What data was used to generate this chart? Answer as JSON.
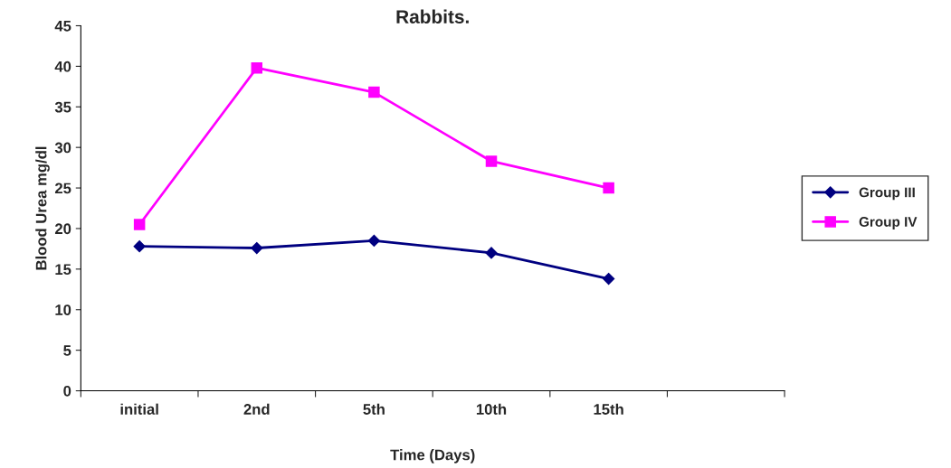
{
  "chart_data": {
    "type": "line",
    "title": "Rabbits.",
    "xlabel": "Time (Days)",
    "ylabel": "Blood Urea mg/dl",
    "categories": [
      "initial",
      "2nd",
      "5th",
      "10th",
      "15th",
      null
    ],
    "series": [
      {
        "name": "Group III",
        "color": "#000080",
        "marker": "diamond",
        "values": [
          17.8,
          17.6,
          18.5,
          17.0,
          13.8,
          null
        ]
      },
      {
        "name": "Group IV",
        "color": "#ff00ff",
        "marker": "square",
        "values": [
          20.5,
          39.8,
          36.8,
          28.3,
          25.0,
          null
        ]
      }
    ],
    "ylim": [
      0,
      45
    ],
    "yticks": [
      0,
      5,
      10,
      15,
      20,
      25,
      30,
      35,
      40,
      45
    ],
    "grid": false,
    "legend": "right"
  }
}
